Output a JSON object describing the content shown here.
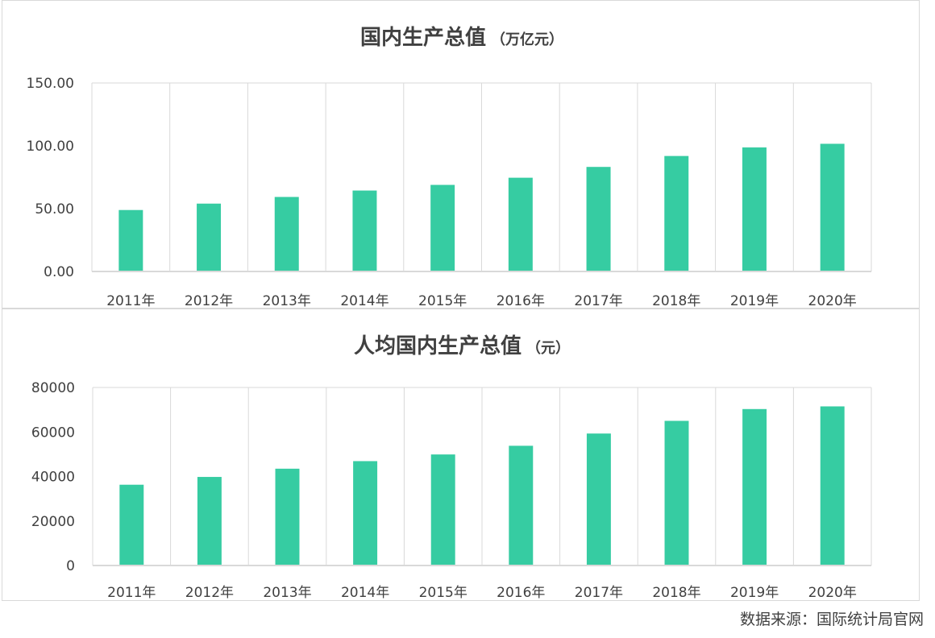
{
  "colors": {
    "bar": "#36CCA2",
    "grid": "#D9D9D9",
    "text": "#404040"
  },
  "chart_data": [
    {
      "type": "bar",
      "title": "国内生产总值",
      "unit": "（万亿元）",
      "categories": [
        "2011年",
        "2012年",
        "2013年",
        "2014年",
        "2015年",
        "2016年",
        "2017年",
        "2018年",
        "2019年",
        "2020年"
      ],
      "values": [
        48.9,
        54.0,
        59.3,
        64.4,
        68.9,
        74.6,
        83.2,
        91.9,
        98.7,
        101.6
      ],
      "yticks": [
        "0.00",
        "50.00",
        "100.00",
        "150.00"
      ],
      "ylim": [
        0,
        150
      ],
      "xlabel": "",
      "ylabel": ""
    },
    {
      "type": "bar",
      "title": "人均国内生产总值",
      "unit": "（元）",
      "categories": [
        "2011年",
        "2012年",
        "2013年",
        "2014年",
        "2015年",
        "2016年",
        "2017年",
        "2018年",
        "2019年",
        "2020年"
      ],
      "values": [
        36300,
        39800,
        43500,
        46900,
        49900,
        53800,
        59300,
        65000,
        70300,
        71500
      ],
      "yticks": [
        "0",
        "20000",
        "40000",
        "60000",
        "80000"
      ],
      "ylim": [
        0,
        80000
      ],
      "xlabel": "",
      "ylabel": ""
    }
  ],
  "source": "数据来源：国际统计局官网"
}
